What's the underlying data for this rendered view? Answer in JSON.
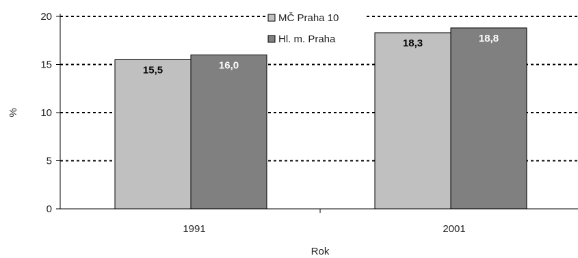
{
  "chart_data": {
    "type": "bar",
    "categories": [
      "1991",
      "2001"
    ],
    "series": [
      {
        "name": "MČ Praha 10",
        "values": [
          15.5,
          18.3
        ],
        "labels": [
          "15,5",
          "18,3"
        ],
        "color": "#c0c0c0",
        "label_color": "#000000"
      },
      {
        "name": "Hl. m. Praha",
        "values": [
          16.0,
          18.8
        ],
        "labels": [
          "16,0",
          "18,8"
        ],
        "color": "#808080",
        "label_color": "#ffffff"
      }
    ],
    "ylabel": "%",
    "xlabel": "Rok",
    "ylim": [
      0,
      20
    ],
    "yticks": [
      "0",
      "5",
      "10",
      "15",
      "20"
    ],
    "grid": "dotted horizontal",
    "legend_position": "top"
  }
}
